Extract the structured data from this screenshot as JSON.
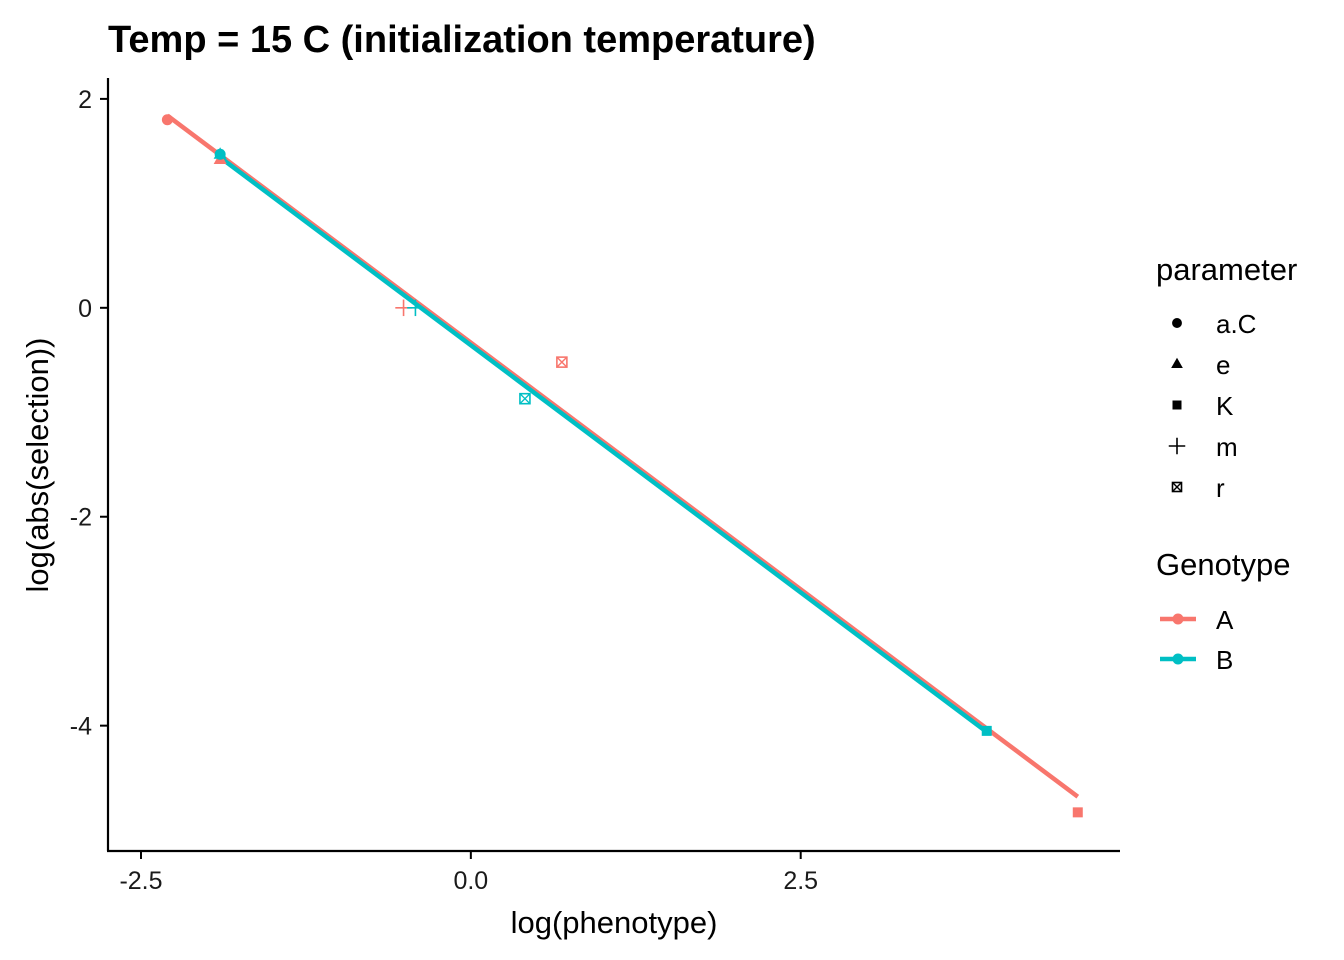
{
  "chart_data": {
    "type": "scatter",
    "title": "Temp = 15 C (initialization temperature)",
    "xlabel": "log(phenotype)",
    "ylabel": "log(abs(selection))",
    "xlim": [
      -2.75,
      4.92
    ],
    "ylim": [
      -5.2,
      2.2
    ],
    "xticks": [
      -2.5,
      0.0,
      2.5
    ],
    "xtick_labels": [
      "-2.5",
      "0.0",
      "2.5"
    ],
    "yticks": [
      2,
      0,
      -2,
      -4
    ],
    "ytick_labels": [
      "2",
      "0",
      "-2",
      "-4"
    ],
    "grid": false,
    "legend_position": "right",
    "shape_legend": {
      "title": "parameter",
      "items": [
        {
          "label": "a.C",
          "shape": "circle"
        },
        {
          "label": "e",
          "shape": "triangle"
        },
        {
          "label": "K",
          "shape": "square"
        },
        {
          "label": "m",
          "shape": "plus"
        },
        {
          "label": "r",
          "shape": "square-cross"
        }
      ]
    },
    "color_legend": {
      "title": "Genotype",
      "items": [
        {
          "label": "A",
          "color": "#F8766D"
        },
        {
          "label": "B",
          "color": "#00BFC4"
        }
      ]
    },
    "series": [
      {
        "name": "A",
        "color": "#F8766D",
        "points": [
          {
            "parameter": "a.C",
            "x": -2.3,
            "y": 1.8
          },
          {
            "parameter": "e",
            "x": -1.9,
            "y": 1.42
          },
          {
            "parameter": "m",
            "x": -0.51,
            "y": 0.0
          },
          {
            "parameter": "r",
            "x": 0.69,
            "y": -0.52
          },
          {
            "parameter": "K",
            "x": 4.6,
            "y": -4.83
          }
        ],
        "fit": {
          "x": [
            -2.3,
            4.6
          ],
          "y": [
            1.84,
            -4.68
          ]
        }
      },
      {
        "name": "B",
        "color": "#00BFC4",
        "points": [
          {
            "parameter": "a.C",
            "x": -1.9,
            "y": 1.47
          },
          {
            "parameter": "e",
            "x": -1.9,
            "y": 1.47
          },
          {
            "parameter": "m",
            "x": -0.42,
            "y": 0.0
          },
          {
            "parameter": "r",
            "x": 0.41,
            "y": -0.87
          },
          {
            "parameter": "K",
            "x": 3.91,
            "y": -4.05
          }
        ],
        "fit": {
          "x": [
            -1.9,
            3.91
          ],
          "y": [
            1.44,
            -4.06
          ]
        }
      }
    ]
  }
}
